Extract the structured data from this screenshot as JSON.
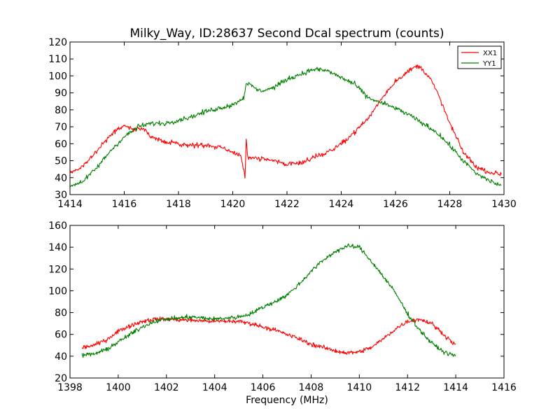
{
  "title": "Milky_Way, ID:28637 Second Dcal spectrum (counts)",
  "xlabel": "Frequency (MHz)",
  "colors": {
    "XX1": "#ff0000",
    "YY1": "#008000"
  },
  "chart_data": [
    {
      "type": "line",
      "title": "Milky_Way, ID:28637 Second Dcal spectrum (counts)",
      "xlabel": "",
      "ylabel": "",
      "xlim": [
        1414,
        1430
      ],
      "ylim": [
        30,
        120
      ],
      "xticks": [
        1414,
        1416,
        1418,
        1420,
        1422,
        1424,
        1426,
        1428,
        1430
      ],
      "yticks": [
        30,
        40,
        50,
        60,
        70,
        80,
        90,
        100,
        110,
        120
      ],
      "grid": false,
      "legend": "top-right",
      "series": [
        {
          "name": "XX1",
          "color": "#ff0000",
          "x": [
            1414.0,
            1414.5,
            1415.0,
            1415.5,
            1416.0,
            1416.3,
            1416.7,
            1417.0,
            1417.5,
            1418.0,
            1418.5,
            1419.0,
            1419.5,
            1420.0,
            1420.3,
            1420.45,
            1420.5,
            1420.55,
            1420.7,
            1421.0,
            1421.5,
            1422.0,
            1422.5,
            1423.0,
            1423.5,
            1424.0,
            1424.5,
            1425.0,
            1425.5,
            1426.0,
            1426.5,
            1426.8,
            1427.0,
            1427.3,
            1427.6,
            1428.0,
            1428.5,
            1429.0,
            1429.5,
            1429.9
          ],
          "y": [
            43,
            47,
            56,
            65,
            71,
            68,
            69,
            64,
            61,
            60,
            59,
            59,
            58,
            55,
            53,
            40,
            64,
            52,
            52,
            51,
            50,
            48,
            49,
            52,
            55,
            60,
            67,
            75,
            87,
            97,
            103,
            106,
            104,
            98,
            88,
            72,
            55,
            46,
            43,
            42
          ]
        },
        {
          "name": "YY1",
          "color": "#008000",
          "x": [
            1414.0,
            1414.5,
            1415.0,
            1415.5,
            1416.0,
            1416.5,
            1417.0,
            1417.5,
            1418.0,
            1418.5,
            1419.0,
            1419.5,
            1420.0,
            1420.4,
            1420.5,
            1421.0,
            1421.5,
            1422.0,
            1422.5,
            1423.0,
            1423.5,
            1424.0,
            1424.5,
            1425.0,
            1425.5,
            1426.0,
            1426.5,
            1427.0,
            1427.5,
            1428.0,
            1428.5,
            1429.0,
            1429.5,
            1429.9
          ],
          "y": [
            35,
            38,
            46,
            56,
            64,
            70,
            72,
            72,
            74,
            76,
            79,
            81,
            83,
            87,
            96,
            91,
            93,
            98,
            101,
            104,
            103,
            99,
            95,
            87,
            84,
            81,
            77,
            72,
            67,
            59,
            50,
            42,
            38,
            35
          ]
        }
      ]
    },
    {
      "type": "line",
      "title": "",
      "xlabel": "Frequency (MHz)",
      "ylabel": "",
      "xlim": [
        1398,
        1416
      ],
      "ylim": [
        20,
        160
      ],
      "xticks": [
        1398,
        1400,
        1402,
        1404,
        1406,
        1408,
        1410,
        1412,
        1414,
        1416
      ],
      "yticks": [
        20,
        40,
        60,
        80,
        100,
        120,
        140,
        160
      ],
      "grid": false,
      "series": [
        {
          "name": "XX1",
          "color": "#ff0000",
          "x": [
            1398.5,
            1399.0,
            1399.5,
            1400.0,
            1400.5,
            1401.0,
            1401.5,
            1402.0,
            1403.0,
            1404.0,
            1405.0,
            1405.5,
            1406.0,
            1406.5,
            1407.0,
            1407.5,
            1408.0,
            1408.5,
            1409.0,
            1409.5,
            1410.0,
            1410.5,
            1411.0,
            1411.5,
            1412.0,
            1412.5,
            1413.0,
            1413.5,
            1414.0
          ],
          "y": [
            48,
            50,
            55,
            63,
            68,
            72,
            74,
            74,
            73,
            72,
            72,
            70,
            67,
            64,
            60,
            56,
            51,
            48,
            45,
            43,
            44,
            48,
            56,
            65,
            72,
            74,
            70,
            60,
            50
          ]
        },
        {
          "name": "YY1",
          "color": "#008000",
          "x": [
            1398.5,
            1399.0,
            1399.5,
            1400.0,
            1400.5,
            1401.0,
            1401.5,
            1402.0,
            1403.0,
            1404.0,
            1405.0,
            1405.5,
            1406.0,
            1406.5,
            1407.0,
            1407.5,
            1408.0,
            1408.5,
            1409.0,
            1409.5,
            1410.0,
            1410.5,
            1411.0,
            1411.5,
            1412.0,
            1412.5,
            1413.0,
            1413.5,
            1414.0
          ],
          "y": [
            41,
            42,
            46,
            53,
            60,
            67,
            72,
            74,
            76,
            74,
            76,
            79,
            85,
            90,
            96,
            106,
            118,
            128,
            136,
            141,
            140,
            127,
            113,
            98,
            79,
            64,
            52,
            44,
            40
          ]
        }
      ]
    }
  ]
}
